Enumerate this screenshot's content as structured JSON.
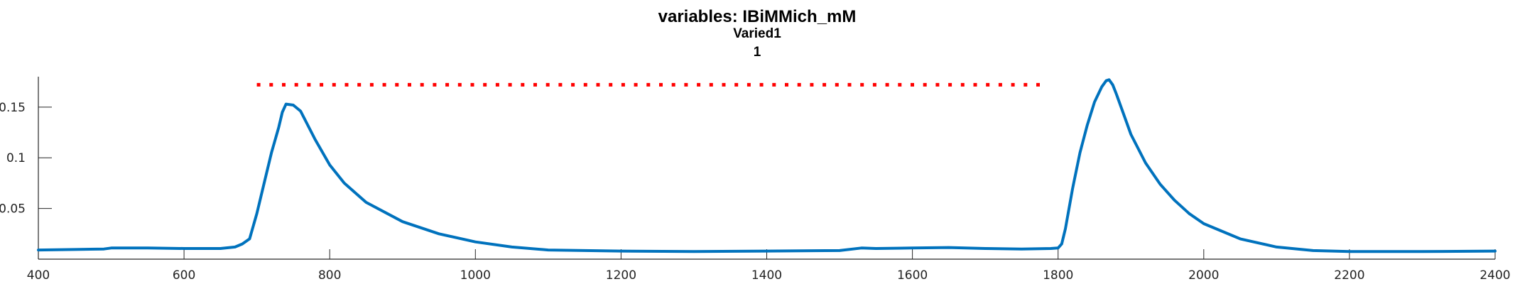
{
  "chart_data": {
    "type": "line",
    "title": "variables: IBiMMich_mM",
    "subtitle": "Varied1",
    "subtitle2": "1",
    "xlabel": "",
    "ylabel": "",
    "xlim": [
      400,
      2400
    ],
    "ylim": [
      0.0,
      0.18
    ],
    "grid": false,
    "x_ticks": [
      400,
      600,
      800,
      1000,
      1200,
      1400,
      1600,
      1800,
      2000,
      2200,
      2400
    ],
    "y_ticks": [
      0.05,
      0.1,
      0.15
    ],
    "y_tick_labels": [
      "0.05",
      "0.1",
      "0.15"
    ],
    "colors": {
      "series": "#0072BD",
      "marker_line": "#FF0000"
    },
    "series": [
      {
        "style": "solid",
        "x": [
          400,
          450,
          490,
          500,
          550,
          600,
          650,
          670,
          680,
          690,
          700,
          710,
          720,
          730,
          735,
          740,
          750,
          760,
          780,
          800,
          820,
          850,
          900,
          950,
          1000,
          1050,
          1100,
          1200,
          1300,
          1400,
          1500,
          1530,
          1550,
          1600,
          1650,
          1700,
          1750,
          1790,
          1800,
          1805,
          1810,
          1820,
          1830,
          1840,
          1850,
          1860,
          1866,
          1870,
          1875,
          1880,
          1890,
          1900,
          1920,
          1940,
          1960,
          1980,
          2000,
          2050,
          2100,
          2150,
          2200,
          2300,
          2400
        ],
        "y": [
          0.009,
          0.0095,
          0.01,
          0.011,
          0.011,
          0.0105,
          0.0105,
          0.012,
          0.015,
          0.02,
          0.045,
          0.075,
          0.105,
          0.13,
          0.145,
          0.153,
          0.152,
          0.146,
          0.118,
          0.093,
          0.075,
          0.056,
          0.037,
          0.025,
          0.017,
          0.012,
          0.009,
          0.008,
          0.0075,
          0.008,
          0.0085,
          0.011,
          0.0105,
          0.011,
          0.0115,
          0.0105,
          0.01,
          0.0105,
          0.011,
          0.015,
          0.03,
          0.07,
          0.105,
          0.132,
          0.155,
          0.17,
          0.176,
          0.177,
          0.172,
          0.163,
          0.143,
          0.123,
          0.095,
          0.074,
          0.058,
          0.045,
          0.035,
          0.02,
          0.012,
          0.0085,
          0.0075,
          0.0075,
          0.008
        ]
      },
      {
        "style": "dotted",
        "x": [
          700,
          1785
        ],
        "y": [
          0.172,
          0.172
        ]
      }
    ]
  }
}
